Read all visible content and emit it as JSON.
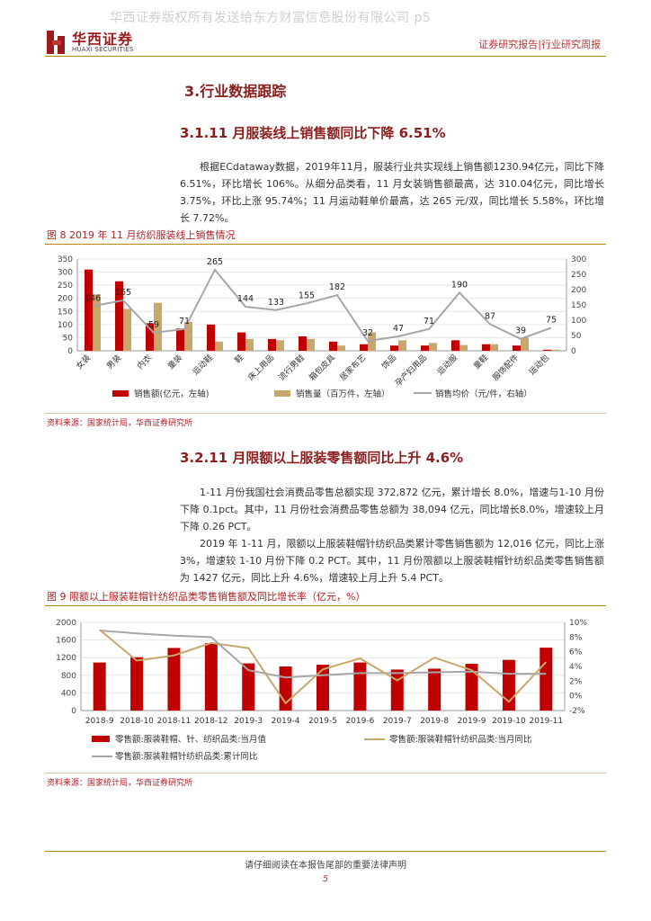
{
  "header": {
    "watermark": "华西证券版权所有发送给东方财富信息股份有限公司 p5",
    "logo_cn": "华西证券",
    "logo_en": "HUAXI SECURITIES",
    "report_type": "证券研究报告|行业研究周报"
  },
  "section": {
    "title": "3.行业数据跟踪",
    "sub1_title": "3.1.11 月服装线上销售额同比下降 6.51%",
    "sub1_para": "根据ECdataway数据，2019年11月，服装行业共实现线上销售额1230.94亿元，同比下降 6.51%，环比增长 106%。从细分品类看，11 月女装销售额最高，达 310.04亿元，同比增长 3.75%，环比上涨 95.74%；11 月运动鞋单价最高，达 265 元/双，同比增长 5.58%，环比增长 7.72%。",
    "fig8_title": "图 8   2019 年 11 月纺织服装线上销售情况",
    "fig8_source": "资料来源：国家统计局，华西证券研究所",
    "sub2_title": "3.2.11 月限额以上服装零售额同比上升 4.6%",
    "sub2_para1": "1-11 月份我国社会消费品零售总额实现 372,872 亿元，累计增长 8.0%，增速与1-10 月份下降 0.1pct。其中，11 月份社会消费品零售总额为 38,094 亿元，同比增长8.0%，增速较上月下降 0.26 PCT。",
    "sub2_para2": "2019 年 1-11 月，限额以上服装鞋帽针纺织品类累计零售销售额为 12,016 亿元，同比上涨 3%，增速较 1-10 月份下降 0.2  PCT。其中，11 月份限额以上服装鞋帽针纺织品类零售销售额为 1427 亿元，同比上升 4.6%，增速较上月上升 5.4 PCT。",
    "fig9_title": "图 9   限额以上服装鞋帽针纺织品类零售销售额及同比增长率（亿元，%）",
    "fig9_source": "资料来源：国家统计局，华西证券研究所"
  },
  "footer": {
    "notice": "请仔细阅读在本报告尾部的重要法律声明",
    "page": "5"
  },
  "chart_data": [
    {
      "type": "bar",
      "categories": [
        "女装",
        "男装",
        "内衣",
        "童装",
        "运动鞋",
        "鞋",
        "床上用品",
        "流行男鞋",
        "箱包皮具",
        "居家布艺",
        "饰品",
        "孕产妇用品",
        "运动服",
        "童鞋",
        "服饰配件",
        "运动包"
      ],
      "series": [
        {
          "name": "销售额(亿元，左轴)",
          "kind": "bar",
          "axis": "left",
          "color": "#c00000",
          "values": [
            310,
            265,
            105,
            85,
            100,
            70,
            45,
            55,
            35,
            25,
            20,
            20,
            40,
            25,
            20,
            4
          ]
        },
        {
          "name": "销售量（百万件，左轴）",
          "kind": "bar",
          "axis": "left",
          "color": "#c9a76a",
          "values": [
            215,
            160,
            183,
            110,
            35,
            45,
            40,
            45,
            20,
            70,
            40,
            30,
            22,
            25,
            50,
            4
          ]
        },
        {
          "name": "销售均价（元/件，右轴）",
          "kind": "line",
          "axis": "right",
          "color": "#a6a6a6",
          "values": [
            146,
            165,
            59,
            71,
            265,
            144,
            133,
            155,
            182,
            32,
            47,
            71,
            190,
            87,
            39,
            75
          ]
        }
      ],
      "ylim_left": [
        0,
        350
      ],
      "yticks_left": [
        0,
        50,
        100,
        150,
        200,
        250,
        300,
        350
      ],
      "ylim_right": [
        0,
        300
      ],
      "yticks_right": [
        0,
        50,
        100,
        150,
        200,
        250,
        300
      ],
      "legend": "bottom"
    },
    {
      "type": "bar",
      "categories": [
        "2018-9",
        "2018-10",
        "2018-11",
        "2018-12",
        "2019-3",
        "2019-4",
        "2019-5",
        "2019-6",
        "2019-7",
        "2019-8",
        "2019-9",
        "2019-10",
        "2019-11"
      ],
      "series": [
        {
          "name": "零售额:服装鞋帽、针、纺织品类:当月值",
          "kind": "bar",
          "axis": "left",
          "color": "#c00000",
          "values": [
            1090,
            1210,
            1420,
            1530,
            1070,
            1000,
            1040,
            1090,
            930,
            950,
            1060,
            1150,
            1427
          ]
        },
        {
          "name": "零售额:服装鞋帽针纺织品类:当月同比",
          "kind": "line",
          "axis": "right",
          "color": "#c9a76a",
          "values": [
            9.0,
            4.8,
            5.5,
            7.2,
            6.5,
            -1.0,
            3.6,
            5.1,
            2.1,
            5.2,
            3.5,
            -0.8,
            4.6
          ]
        },
        {
          "name": "零售额:服装鞋帽针纺织品类:累计同比",
          "kind": "line",
          "axis": "right",
          "color": "#a6a6a6",
          "values": [
            8.9,
            8.5,
            8.2,
            8.0,
            3.5,
            2.5,
            2.8,
            3.1,
            3.1,
            3.2,
            3.3,
            3.0,
            3.0
          ]
        }
      ],
      "ylim_left": [
        0,
        2000
      ],
      "yticks_left": [
        0,
        400,
        800,
        1200,
        1600,
        2000
      ],
      "ylim_right": [
        -2,
        10
      ],
      "yticks_right": [
        "-2%",
        "0%",
        "2%",
        "4%",
        "6%",
        "8%",
        "10%"
      ],
      "legend": "bottom"
    }
  ]
}
